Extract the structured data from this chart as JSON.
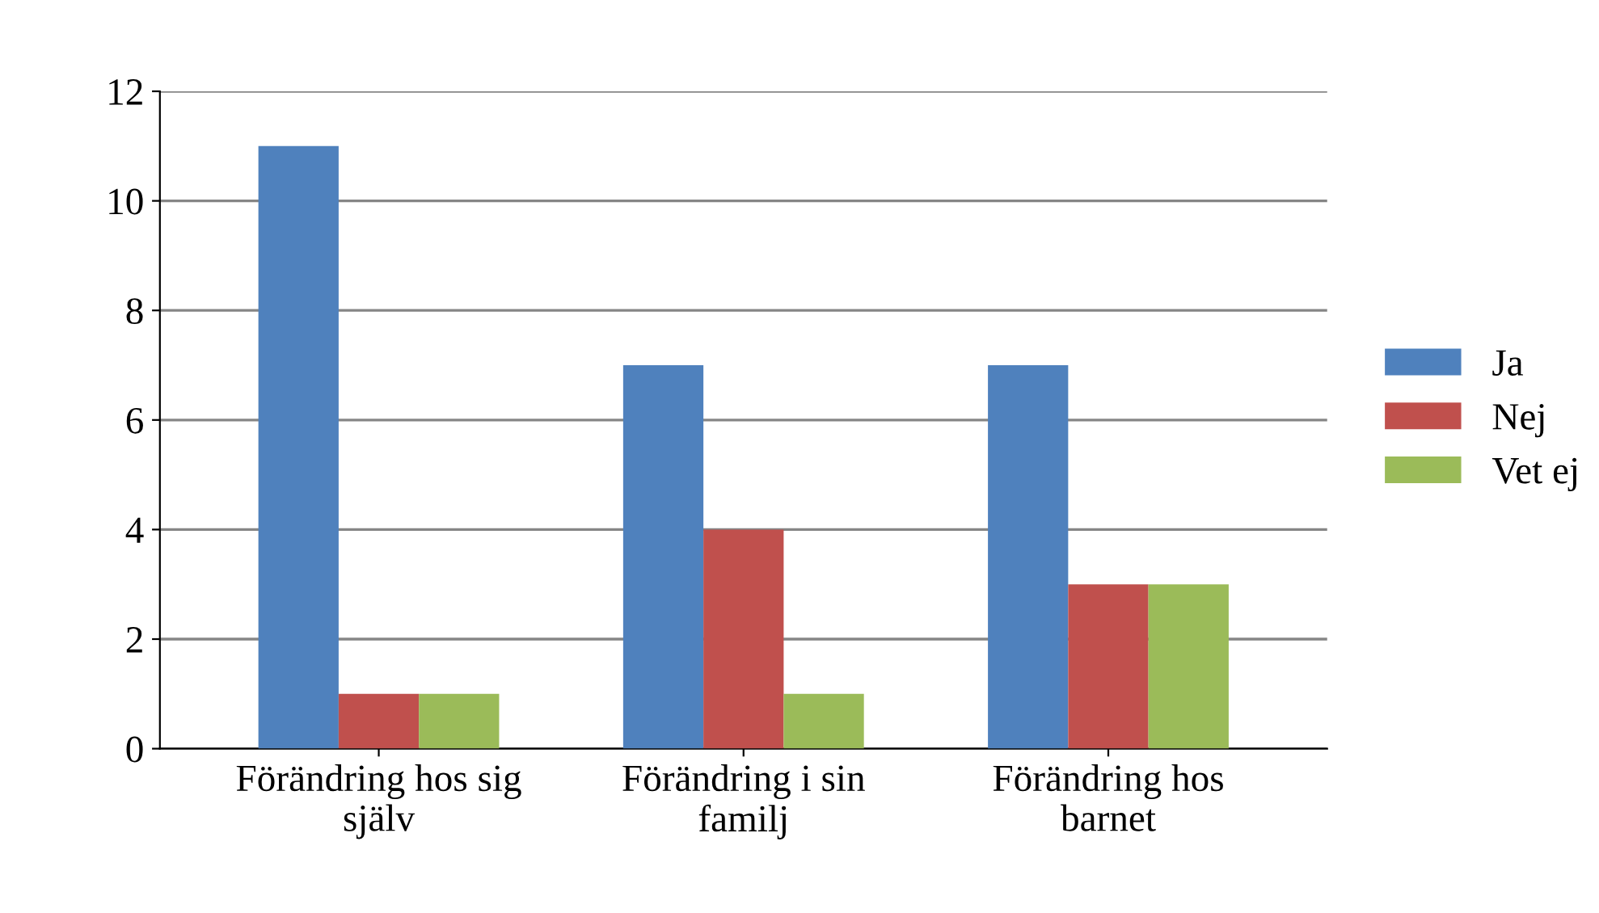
{
  "chart_data": {
    "type": "bar",
    "categories": [
      "Förändring hos sig själv",
      "Förändring i sin familj",
      "Förändring hos barnet"
    ],
    "series": [
      {
        "name": "Ja",
        "color": "#4f81bd",
        "values": [
          11,
          7,
          7
        ]
      },
      {
        "name": "Nej",
        "color": "#c0504d",
        "values": [
          1,
          4,
          3
        ]
      },
      {
        "name": "Vet ej",
        "color": "#9bbb59",
        "values": [
          1,
          1,
          3
        ]
      }
    ],
    "ylim": [
      0,
      12
    ],
    "yticks": [
      0,
      2,
      4,
      6,
      8,
      10,
      12
    ],
    "grid": "y",
    "legend": "right"
  }
}
